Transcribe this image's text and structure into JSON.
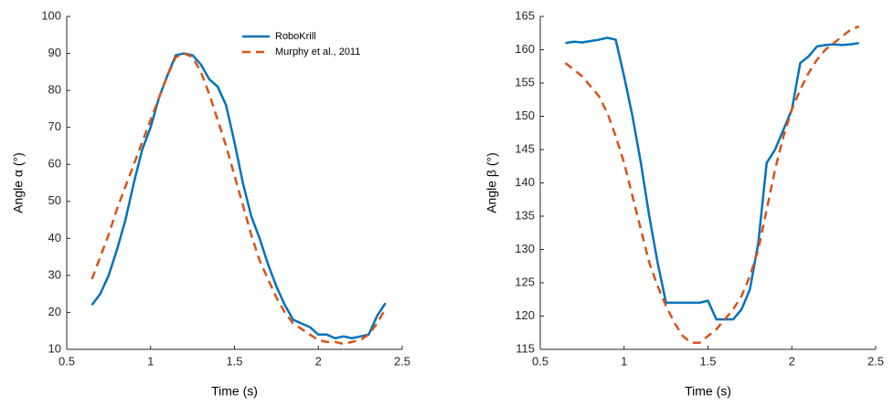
{
  "chart_data": [
    {
      "type": "line",
      "xlabel": "Time (s)",
      "ylabel": "Angle α (°)",
      "x": [
        0.65,
        0.7,
        0.75,
        0.8,
        0.85,
        0.9,
        0.95,
        1.0,
        1.05,
        1.1,
        1.15,
        1.2,
        1.25,
        1.3,
        1.35,
        1.4,
        1.45,
        1.5,
        1.55,
        1.6,
        1.65,
        1.7,
        1.75,
        1.8,
        1.85,
        1.9,
        1.95,
        2.0,
        2.05,
        2.1,
        2.15,
        2.2,
        2.25,
        2.3,
        2.35,
        2.4
      ],
      "series": [
        {
          "name": "RoboKrill",
          "color": "#0072bd",
          "style": "solid",
          "values": [
            22,
            25,
            30,
            37,
            45,
            55,
            64,
            70,
            78,
            84,
            89.5,
            90,
            89.5,
            87,
            83,
            81,
            76,
            66,
            55,
            46,
            40,
            33,
            27,
            22,
            18,
            17,
            16,
            14,
            14,
            13,
            13.5,
            13,
            13.5,
            14,
            19,
            22.5
          ]
        },
        {
          "name": "Murphy et al., 2011",
          "color": "#d95319",
          "style": "dashed",
          "values": [
            29,
            35,
            41,
            48,
            54,
            60,
            66,
            72,
            78,
            84,
            89,
            90,
            89,
            85,
            79,
            72,
            65,
            57,
            49,
            41,
            34,
            29,
            24,
            20,
            17,
            15.5,
            14,
            12.5,
            12,
            12,
            11.5,
            12,
            12.5,
            14,
            17,
            21
          ]
        }
      ],
      "xlim": [
        0.5,
        2.5
      ],
      "xticks": [
        0.5,
        1,
        1.5,
        2,
        2.5
      ],
      "ylim": [
        10,
        100
      ],
      "yticks": [
        10,
        20,
        30,
        40,
        50,
        60,
        70,
        80,
        90,
        100
      ],
      "legend": "top-right"
    },
    {
      "type": "line",
      "xlabel": "Time (s)",
      "ylabel": "Angle β (°)",
      "x": [
        0.65,
        0.7,
        0.75,
        0.8,
        0.85,
        0.9,
        0.95,
        1.0,
        1.05,
        1.1,
        1.15,
        1.2,
        1.25,
        1.3,
        1.35,
        1.4,
        1.45,
        1.5,
        1.55,
        1.6,
        1.65,
        1.7,
        1.75,
        1.8,
        1.85,
        1.9,
        1.95,
        2.0,
        2.05,
        2.1,
        2.15,
        2.2,
        2.25,
        2.3,
        2.35,
        2.4
      ],
      "series": [
        {
          "color": "#0072bd",
          "style": "solid",
          "values": [
            161,
            161.2,
            161.1,
            161.3,
            161.5,
            161.8,
            161.5,
            156,
            150,
            143,
            135,
            128,
            122,
            122,
            122,
            122,
            122,
            122.3,
            119.5,
            119.5,
            119.5,
            121,
            124,
            131,
            143,
            145,
            148,
            151,
            158,
            159,
            160.5,
            160.7,
            160.8,
            160.7,
            160.8,
            161
          ]
        },
        {
          "color": "#d95319",
          "style": "dashed",
          "values": [
            158,
            157,
            156,
            154.5,
            153,
            150.5,
            147,
            143,
            138,
            133,
            128,
            124.5,
            121.5,
            119,
            117,
            116,
            116,
            117,
            118,
            119.5,
            121,
            123,
            126,
            130,
            136,
            142,
            147,
            151,
            154,
            156.5,
            158.5,
            160,
            161,
            162,
            163,
            163.5
          ]
        }
      ],
      "xlim": [
        0.5,
        2.5
      ],
      "xticks": [
        0.5,
        1,
        1.5,
        2,
        2.5
      ],
      "ylim": [
        115,
        165
      ],
      "yticks": [
        115,
        120,
        125,
        130,
        135,
        140,
        145,
        150,
        155,
        160,
        165
      ]
    }
  ]
}
